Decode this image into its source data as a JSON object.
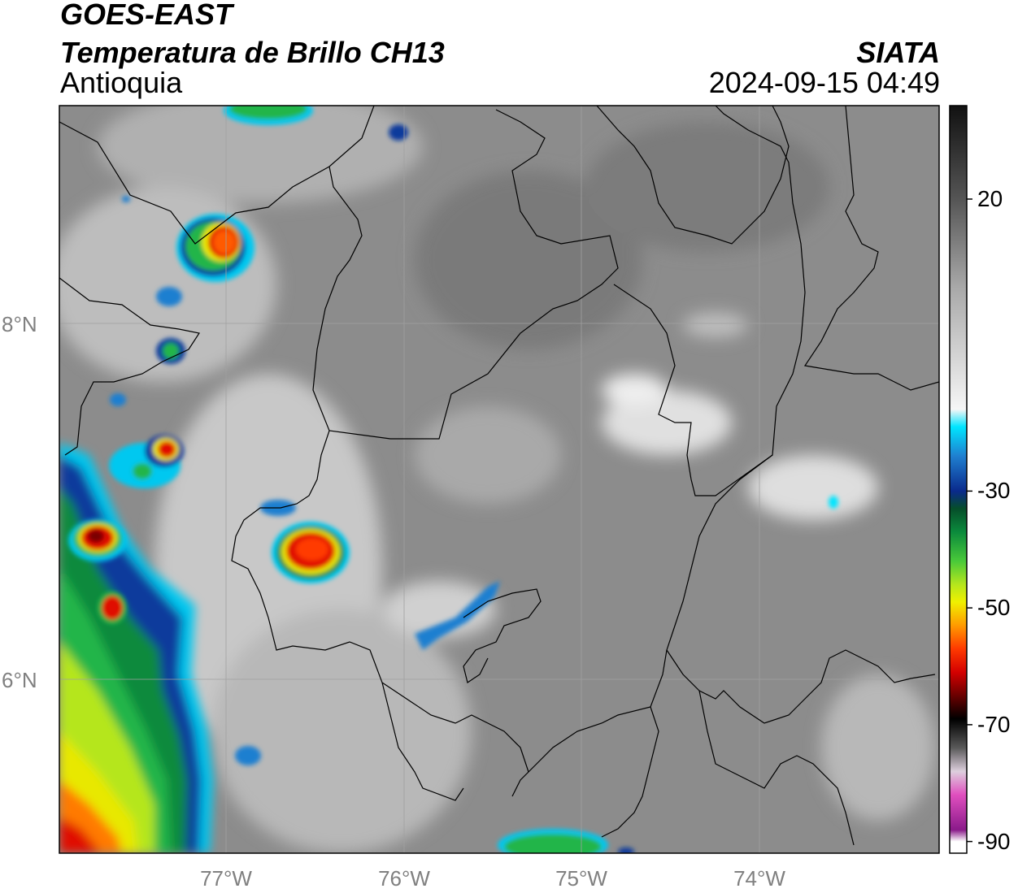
{
  "header": {
    "satellite": "GOES-EAST",
    "product": "Temperatura de Brillo CH13",
    "region": "Antioquia",
    "organization": "SIATA",
    "timestamp": "2024-09-15 04:49"
  },
  "axes": {
    "longitude_labels": [
      "77°W",
      "76°W",
      "75°W",
      "74°W"
    ],
    "latitude_labels": [
      "8°N",
      "6°N"
    ],
    "lon_range": [
      -77.95,
      -73.0
    ],
    "lat_range": [
      4.95,
      9.15
    ]
  },
  "colorbar": {
    "tick_labels": [
      "20",
      "-30",
      "-50",
      "-70",
      "-90"
    ],
    "tick_values": [
      20,
      -30,
      -50,
      -70,
      -90
    ],
    "range": [
      -92,
      36
    ],
    "gradient_stops": [
      {
        "v": 36,
        "c": "#111111"
      },
      {
        "v": 20,
        "c": "#555555"
      },
      {
        "v": 5,
        "c": "#a8a8a8"
      },
      {
        "v": -16,
        "c": "#f6f6f6"
      },
      {
        "v": -19,
        "c": "#00e5ff"
      },
      {
        "v": -24,
        "c": "#1f7fd0"
      },
      {
        "v": -30,
        "c": "#0a2a8c"
      },
      {
        "v": -33,
        "c": "#064e2a"
      },
      {
        "v": -37,
        "c": "#0b8a3c"
      },
      {
        "v": -42,
        "c": "#49c93a"
      },
      {
        "v": -46,
        "c": "#b5e61d"
      },
      {
        "v": -49,
        "c": "#f0f000"
      },
      {
        "v": -53,
        "c": "#ff9a00"
      },
      {
        "v": -57,
        "c": "#ff3a00"
      },
      {
        "v": -61,
        "c": "#d40000"
      },
      {
        "v": -65,
        "c": "#6a0000"
      },
      {
        "v": -69,
        "c": "#000000"
      },
      {
        "v": -74,
        "c": "#5a5a5a"
      },
      {
        "v": -78,
        "c": "#ddcfdd"
      },
      {
        "v": -82,
        "c": "#e04fbf"
      },
      {
        "v": -88,
        "c": "#8a1a8a"
      },
      {
        "v": -90,
        "c": "#ffffff"
      }
    ]
  },
  "colors": {
    "cloud_bright": "#f2f2f2",
    "cold_cyan": "#00c8f0",
    "cold_blue": "#0a3a9c",
    "green": "#21b54a",
    "yellow": "#e8e800",
    "orange": "#ff7a00",
    "red": "#e01000",
    "dark_red": "#7a0000",
    "background_gray": "#8c8c8c",
    "border": "#000000",
    "grid": "#aaaaaa"
  }
}
